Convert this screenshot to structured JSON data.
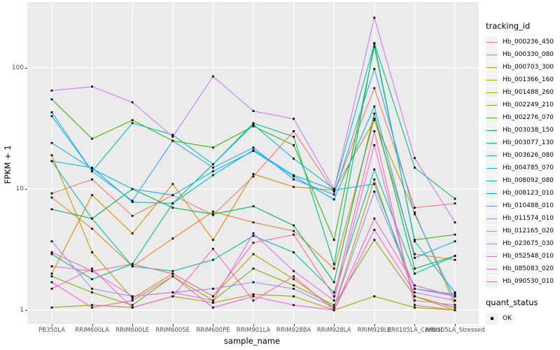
{
  "chart_data": {
    "type": "line",
    "xlabel": "sample_name",
    "ylabel": "FPKM + 1",
    "y_scale": "log10",
    "y_ticks": [
      1,
      10,
      100
    ],
    "y_minor_ticks": [
      3.162,
      31.62,
      316.2
    ],
    "ylim": [
      0.9,
      330
    ],
    "grid": "white-on-gray",
    "legend_position": "right",
    "point_marker": "black-square",
    "categories": [
      "PB350LA",
      "RRIM600LA",
      "RRIM600LE",
      "RRIM600SE",
      "RRIM600PE",
      "RRIM901LA",
      "RRIM928BA",
      "RRIM928LA",
      "RRIM928LE",
      "RRII105LA_Control",
      "RRII105LA_Stressed"
    ],
    "series": [
      {
        "name": "Hb_000236_450",
        "color": "#F8766D",
        "values": [
          9.2,
          12,
          6,
          8.9,
          6.1,
          12.7,
          30,
          9.5,
          68,
          7,
          7.6
        ]
      },
      {
        "name": "Hb_000330_080",
        "color": "#EA8331",
        "values": [
          8.5,
          4.7,
          2.3,
          3.9,
          6.5,
          5.3,
          4.5,
          2.2,
          38,
          2.9,
          2.6
        ]
      },
      {
        "name": "Hb_000703_300",
        "color": "#D89000",
        "values": [
          2,
          8.9,
          4.3,
          11,
          3.8,
          13.3,
          10.4,
          9.8,
          37,
          6.4,
          1.1
        ]
      },
      {
        "name": "Hb_001366_160",
        "color": "#C09B00",
        "values": [
          19,
          3,
          1.25,
          2,
          1.3,
          2.9,
          1.8,
          1.05,
          12,
          1.3,
          1
        ]
      },
      {
        "name": "Hb_001488_260",
        "color": "#A3A500",
        "values": [
          1.05,
          1.1,
          1.05,
          1.3,
          1.15,
          1.35,
          1.3,
          1,
          1.3,
          1.05,
          1
        ]
      },
      {
        "name": "Hb_002249_210",
        "color": "#7CAE00",
        "values": [
          1.9,
          1.4,
          1.1,
          1.9,
          1.2,
          2.2,
          1.6,
          1.1,
          3.8,
          1.3,
          1.05
        ]
      },
      {
        "name": "Hb_002276_070",
        "color": "#39B600",
        "values": [
          55,
          26,
          37,
          25,
          22,
          33,
          23,
          3.8,
          150,
          3.8,
          4.2
        ]
      },
      {
        "name": "Hb_003038_150",
        "color": "#00BB4E",
        "values": [
          6.8,
          5.7,
          10,
          7,
          6.2,
          7.2,
          5,
          1.7,
          42,
          2.2,
          2.8
        ]
      },
      {
        "name": "Hb_003077_130",
        "color": "#00BF7D",
        "values": [
          2.9,
          1.8,
          2.4,
          7.6,
          16,
          35,
          27,
          2.4,
          160,
          15,
          8.3
        ]
      },
      {
        "name": "Hb_003626_080",
        "color": "#00C1A3",
        "values": [
          17,
          5.7,
          2.3,
          2.1,
          2.6,
          4.1,
          3,
          1.4,
          14.5,
          2,
          2.8
        ]
      },
      {
        "name": "Hb_004785_070",
        "color": "#00BFC4",
        "values": [
          40,
          14,
          35,
          28,
          16,
          34,
          17.8,
          10,
          158,
          3.7,
          1.4
        ]
      },
      {
        "name": "Hb_008092_080",
        "color": "#00BADE",
        "values": [
          17,
          15,
          7.8,
          7.6,
          13,
          21,
          13,
          9.8,
          11,
          1.5,
          1.35
        ]
      },
      {
        "name": "Hb_008123_010",
        "color": "#00B0F6",
        "values": [
          24,
          14.7,
          10,
          8.9,
          14,
          20.6,
          12.7,
          8.2,
          48,
          2.7,
          3.7
        ]
      },
      {
        "name": "Hb_010488_010",
        "color": "#35A2FF",
        "values": [
          43,
          14,
          8,
          25,
          15,
          22,
          12,
          9,
          98,
          6.2,
          1.2
        ]
      },
      {
        "name": "Hb_011574_010",
        "color": "#9590FF",
        "values": [
          3.7,
          1.5,
          1.3,
          1.4,
          1.5,
          1.7,
          1.5,
          1.05,
          9.5,
          1.5,
          1.3
        ]
      },
      {
        "name": "Hb_012165_020",
        "color": "#C77CFF",
        "values": [
          65,
          70,
          52,
          27,
          85,
          44,
          38,
          10,
          260,
          18,
          5.3
        ]
      },
      {
        "name": "Hb_023675_030",
        "color": "#E76BF3",
        "values": [
          2.3,
          2.1,
          1.3,
          1.4,
          1.2,
          4.3,
          2.1,
          1.2,
          23,
          1.2,
          1.1
        ]
      },
      {
        "name": "Hb_052548_010",
        "color": "#FA62DB",
        "values": [
          1.7,
          1.05,
          1.2,
          1.9,
          1.05,
          1.3,
          1.1,
          1,
          4.6,
          1.4,
          1.2
        ]
      },
      {
        "name": "Hb_085083_020",
        "color": "#FF62BC",
        "values": [
          1.5,
          2.2,
          1.05,
          1.3,
          3.2,
          1.2,
          1.9,
          1,
          5.7,
          1.6,
          1.3
        ]
      },
      {
        "name": "Hb_090530_010",
        "color": "#FF6A98",
        "values": [
          3,
          2.1,
          2.4,
          2,
          1.3,
          3.6,
          4.2,
          1.3,
          30,
          1.1,
          1
        ]
      }
    ]
  },
  "legend": {
    "tracking_title": "tracking_id",
    "quant_title": "quant_status",
    "quant_items": [
      {
        "label": "OK"
      }
    ]
  },
  "colors": {
    "panel_bg": "#EBEBEB",
    "grid_major": "#FFFFFF",
    "grid_minor": "#F5F5F5",
    "tick_text": "#4D4D4D",
    "point": "#000000",
    "legend_key_bg": "#F2F2F2"
  }
}
